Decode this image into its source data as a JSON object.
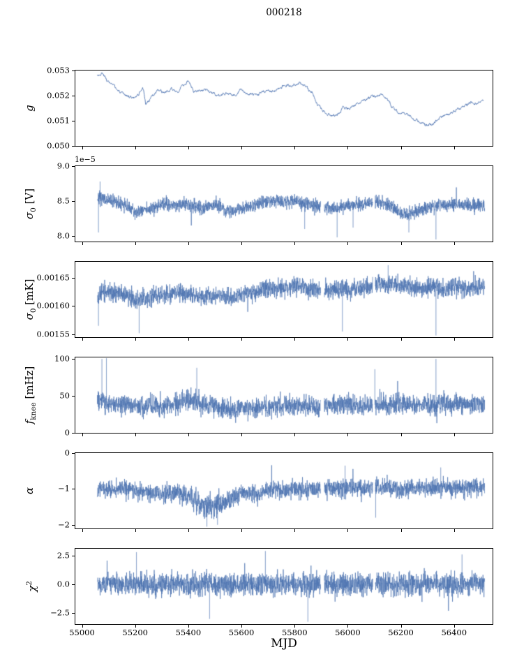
{
  "title": "000218",
  "chart_data": {
    "type": "line",
    "title": "000218",
    "xlabel": "MJD",
    "xlim": [
      54975,
      56545
    ],
    "xticks": [
      55000,
      55200,
      55400,
      55600,
      55800,
      56000,
      56200,
      56400
    ],
    "xtick_labels": [
      "55000",
      "55200",
      "55400",
      "55600",
      "55800",
      "56000",
      "56200",
      "56400"
    ],
    "line_color": "#4c72b0",
    "grid": false,
    "legend": "none",
    "panels": [
      {
        "id": "g",
        "ylabel": [
          {
            "t": "g",
            "s": "i"
          }
        ],
        "ylim": [
          0.05,
          0.053
        ],
        "ytick_values": [
          0.05,
          0.051,
          0.052,
          0.053
        ],
        "ytick_labels": [
          "0.050",
          "0.051",
          "0.052",
          "0.053"
        ],
        "offset_text": "",
        "style": "line",
        "noise_amp": 0.00016,
        "x_range": [
          55058,
          56510
        ],
        "gaps": [],
        "spikes": [],
        "baseline": {
          "x": [
            55055,
            55075,
            55095,
            55115,
            55135,
            55155,
            55175,
            55195,
            55215,
            55228,
            55240,
            55260,
            55285,
            55310,
            55335,
            55360,
            55385,
            55400,
            55420,
            55445,
            55470,
            55495,
            55520,
            55545,
            55570,
            55595,
            55620,
            55645,
            55670,
            55695,
            55720,
            55745,
            55770,
            55795,
            55820,
            55845,
            55865,
            55885,
            55905,
            55925,
            55945,
            55965,
            55985,
            56005,
            56025,
            56045,
            56065,
            56085,
            56105,
            56125,
            56145,
            56165,
            56185,
            56205,
            56225,
            56245,
            56265,
            56285,
            56305,
            56325,
            56345,
            56365,
            56385,
            56405,
            56425,
            56445,
            56465,
            56485,
            56505
          ],
          "y": [
            0.0528,
            0.0529,
            0.0526,
            0.0524,
            0.0522,
            0.052,
            0.052,
            0.0519,
            0.0521,
            0.0524,
            0.0517,
            0.0519,
            0.0522,
            0.0521,
            0.0522,
            0.0522,
            0.0524,
            0.0526,
            0.0522,
            0.0523,
            0.0522,
            0.0521,
            0.052,
            0.0521,
            0.052,
            0.0522,
            0.0521,
            0.052,
            0.0521,
            0.0522,
            0.0522,
            0.0523,
            0.0524,
            0.0524,
            0.0525,
            0.0523,
            0.0521,
            0.0517,
            0.0515,
            0.0513,
            0.0512,
            0.0513,
            0.0515,
            0.0515,
            0.0516,
            0.0517,
            0.0518,
            0.0519,
            0.052,
            0.0521,
            0.0519,
            0.0516,
            0.0514,
            0.0513,
            0.0512,
            0.0511,
            0.051,
            0.0509,
            0.0508,
            0.0509,
            0.0511,
            0.0512,
            0.0513,
            0.0514,
            0.0515,
            0.0516,
            0.0517,
            0.0517,
            0.0518
          ]
        }
      },
      {
        "id": "sigma0-V",
        "ylabel": [
          {
            "t": "σ",
            "s": "i"
          },
          {
            "t": "0",
            "s": "sub"
          },
          {
            "t": " [V]",
            "s": "r"
          }
        ],
        "ylim": [
          7.92,
          9.0
        ],
        "ytick_values": [
          8.0,
          8.5,
          9.0
        ],
        "ytick_labels": [
          "8.0",
          "8.5",
          "9.0"
        ],
        "offset_text": "1e−5",
        "style": "noisy",
        "noise_amp": 0.08,
        "clip": [
          7.95,
          8.93
        ],
        "x_range": [
          55058,
          56515
        ],
        "gaps": [
          [
            55898,
            55912
          ],
          [
            56094,
            56103
          ]
        ],
        "spikes": [
          [
            55062,
            8.05
          ],
          [
            55068,
            8.78
          ],
          [
            55838,
            8.1
          ],
          [
            55960,
            7.98
          ],
          [
            56020,
            8.12
          ],
          [
            56230,
            8.05
          ],
          [
            56332,
            7.95
          ]
        ],
        "baseline": {
          "x": [
            55055,
            55105,
            55155,
            55205,
            55255,
            55305,
            55355,
            55405,
            55455,
            55505,
            55555,
            55605,
            55655,
            55705,
            55755,
            55805,
            55855,
            55905,
            55955,
            56005,
            56055,
            56105,
            56155,
            56205,
            56255,
            56305,
            56355,
            56405,
            56455,
            56505
          ],
          "y": [
            8.55,
            8.5,
            8.45,
            8.35,
            8.4,
            8.45,
            8.45,
            8.45,
            8.4,
            8.45,
            8.35,
            8.4,
            8.45,
            8.5,
            8.5,
            8.5,
            8.45,
            8.4,
            8.4,
            8.45,
            8.45,
            8.5,
            8.45,
            8.3,
            8.35,
            8.4,
            8.45,
            8.45,
            8.45,
            8.45
          ]
        }
      },
      {
        "id": "sigma0-mK",
        "ylabel": [
          {
            "t": "σ",
            "s": "i"
          },
          {
            "t": "0",
            "s": "sub"
          },
          {
            "t": " [mK]",
            "s": "r"
          }
        ],
        "ylim": [
          0.001545,
          0.001678
        ],
        "ytick_values": [
          0.00155,
          0.0016,
          0.00165
        ],
        "ytick_labels": [
          "0.00155",
          "0.00160",
          "0.00165"
        ],
        "offset_text": "",
        "style": "noisy",
        "noise_amp": 1.3e-05,
        "clip": [
          0.001548,
          0.001675
        ],
        "x_range": [
          55058,
          56515
        ],
        "gaps": [
          [
            55898,
            55912
          ],
          [
            56094,
            56103
          ]
        ],
        "spikes": [
          [
            55062,
            0.001565
          ],
          [
            55215,
            0.001552
          ],
          [
            55980,
            0.001555
          ],
          [
            56152,
            0.001672
          ],
          [
            56332,
            0.001548
          ]
        ],
        "baseline": {
          "x": [
            55055,
            55105,
            55155,
            55205,
            55255,
            55305,
            55355,
            55405,
            55455,
            55505,
            55555,
            55605,
            55655,
            55705,
            55755,
            55805,
            55855,
            55905,
            55955,
            56005,
            56055,
            56105,
            56155,
            56205,
            56255,
            56305,
            56355,
            56405,
            56455,
            56505
          ],
          "y": [
            0.00162,
            0.001625,
            0.00162,
            0.001612,
            0.001615,
            0.00162,
            0.001625,
            0.00162,
            0.001615,
            0.00162,
            0.001615,
            0.00162,
            0.001625,
            0.00163,
            0.00163,
            0.001635,
            0.00163,
            0.001625,
            0.00163,
            0.00163,
            0.00163,
            0.001635,
            0.00164,
            0.001635,
            0.00163,
            0.001635,
            0.00163,
            0.001635,
            0.00163,
            0.001635
          ]
        }
      },
      {
        "id": "fknee",
        "ylabel": [
          {
            "t": "f",
            "s": "i"
          },
          {
            "t": "knee",
            "s": "sub"
          },
          {
            "t": " [mHz]",
            "s": "r"
          }
        ],
        "ylim": [
          0,
          102
        ],
        "ytick_values": [
          0,
          50,
          100
        ],
        "ytick_labels": [
          "0",
          "50",
          "100"
        ],
        "offset_text": "",
        "style": "noisy",
        "noise_amp": 11,
        "clip": [
          9,
          101
        ],
        "x_range": [
          55058,
          56515
        ],
        "gaps": [
          [
            55898,
            55912
          ],
          [
            56094,
            56103
          ]
        ],
        "spikes": [
          [
            55075,
            100
          ],
          [
            55092,
            101
          ],
          [
            55432,
            88
          ],
          [
            56102,
            86
          ],
          [
            56332,
            100
          ]
        ],
        "baseline": {
          "x": [
            55055,
            55105,
            55155,
            55205,
            55255,
            55305,
            55355,
            55405,
            55455,
            55505,
            55555,
            55605,
            55655,
            55705,
            55755,
            55805,
            55855,
            55905,
            55955,
            56005,
            56055,
            56105,
            56155,
            56205,
            56255,
            56305,
            56355,
            56405,
            56455,
            56505
          ],
          "y": [
            45,
            40,
            38,
            36,
            38,
            35,
            40,
            45,
            40,
            35,
            33,
            35,
            33,
            35,
            38,
            35,
            36,
            35,
            38,
            38,
            36,
            38,
            38,
            40,
            38,
            38,
            40,
            38,
            40,
            38
          ]
        }
      },
      {
        "id": "alpha",
        "ylabel": [
          {
            "t": "α",
            "s": "i"
          }
        ],
        "ylim": [
          -2.1,
          0
        ],
        "ytick_values": [
          0,
          -1,
          -2
        ],
        "ytick_labels": [
          "0",
          "−1",
          "−2"
        ],
        "offset_text": "",
        "style": "noisy",
        "noise_amp": 0.21,
        "clip": [
          -2.06,
          -0.18
        ],
        "x_range": [
          55058,
          56515
        ],
        "gaps": [
          [
            55898,
            55912
          ],
          [
            56094,
            56103
          ]
        ],
        "spikes": [
          [
            55470,
            -2.05
          ],
          [
            55510,
            -2.0
          ],
          [
            55990,
            -0.35
          ],
          [
            56105,
            -1.8
          ],
          [
            56350,
            -0.4
          ]
        ],
        "amp_points": {
          "x": [
            55055,
            55380,
            55430,
            55480,
            55540,
            55600,
            56505
          ],
          "a": [
            0.2,
            0.2,
            0.28,
            0.3,
            0.26,
            0.2,
            0.2
          ]
        },
        "baseline": {
          "x": [
            55055,
            55105,
            55155,
            55205,
            55255,
            55305,
            55355,
            55405,
            55455,
            55505,
            55555,
            55605,
            55655,
            55705,
            55755,
            55805,
            55855,
            55905,
            55955,
            56005,
            56055,
            56105,
            56155,
            56205,
            56255,
            56305,
            56355,
            56405,
            56455,
            56505
          ],
          "y": [
            -1.0,
            -1.0,
            -1.0,
            -1.05,
            -1.1,
            -1.15,
            -1.1,
            -1.2,
            -1.45,
            -1.5,
            -1.3,
            -1.1,
            -1.15,
            -1.0,
            -1.05,
            -1.0,
            -1.0,
            -1.0,
            -1.0,
            -0.95,
            -1.0,
            -0.95,
            -0.95,
            -1.0,
            -0.95,
            -1.0,
            -0.95,
            -1.0,
            -0.95,
            -0.95
          ]
        }
      },
      {
        "id": "chi2",
        "ylabel": [
          {
            "t": "χ",
            "s": "i"
          },
          {
            "t": "2",
            "s": "sup"
          }
        ],
        "ylim": [
          -3.45,
          3.1
        ],
        "ytick_values": [
          2.5,
          0,
          -2.5
        ],
        "ytick_labels": [
          "2.5",
          "0.0",
          "−2.5"
        ],
        "offset_text": "",
        "style": "noisy",
        "noise_amp": 0.82,
        "clip": [
          -3.35,
          2.95
        ],
        "x_range": [
          55058,
          56515
        ],
        "gaps": [
          [
            55898,
            55912
          ],
          [
            56094,
            56103
          ]
        ],
        "spikes": [
          [
            55205,
            2.8
          ],
          [
            55480,
            -3.0
          ],
          [
            55690,
            2.9
          ],
          [
            55850,
            -3.25
          ],
          [
            56430,
            2.6
          ]
        ],
        "baseline": {
          "x": [
            55055,
            56510
          ],
          "y": [
            0,
            0
          ]
        }
      }
    ]
  }
}
